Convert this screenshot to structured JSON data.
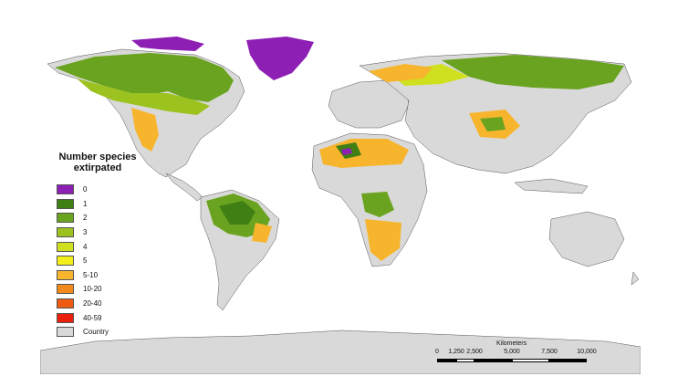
{
  "legend": {
    "title": "Number species extirpated",
    "items": [
      {
        "label": "0",
        "color": "#8e1fb4"
      },
      {
        "label": "1",
        "color": "#3f7f14"
      },
      {
        "label": "2",
        "color": "#6aa31f"
      },
      {
        "label": "3",
        "color": "#9cc21f"
      },
      {
        "label": "4",
        "color": "#cfe01e"
      },
      {
        "label": "5",
        "color": "#f2ef1b"
      },
      {
        "label": "5-10",
        "color": "#f7b52e"
      },
      {
        "label": "10-20",
        "color": "#f28a1b"
      },
      {
        "label": "20-40",
        "color": "#ee5a12"
      },
      {
        "label": "40-59",
        "color": "#e8200c"
      },
      {
        "label": "Country",
        "color": "#d9d9d9"
      }
    ]
  },
  "scale_bar": {
    "title": "Kilometers",
    "ticks": [
      "0",
      "1,250",
      "2,500",
      "5,000",
      "7,500",
      "10,000"
    ]
  }
}
